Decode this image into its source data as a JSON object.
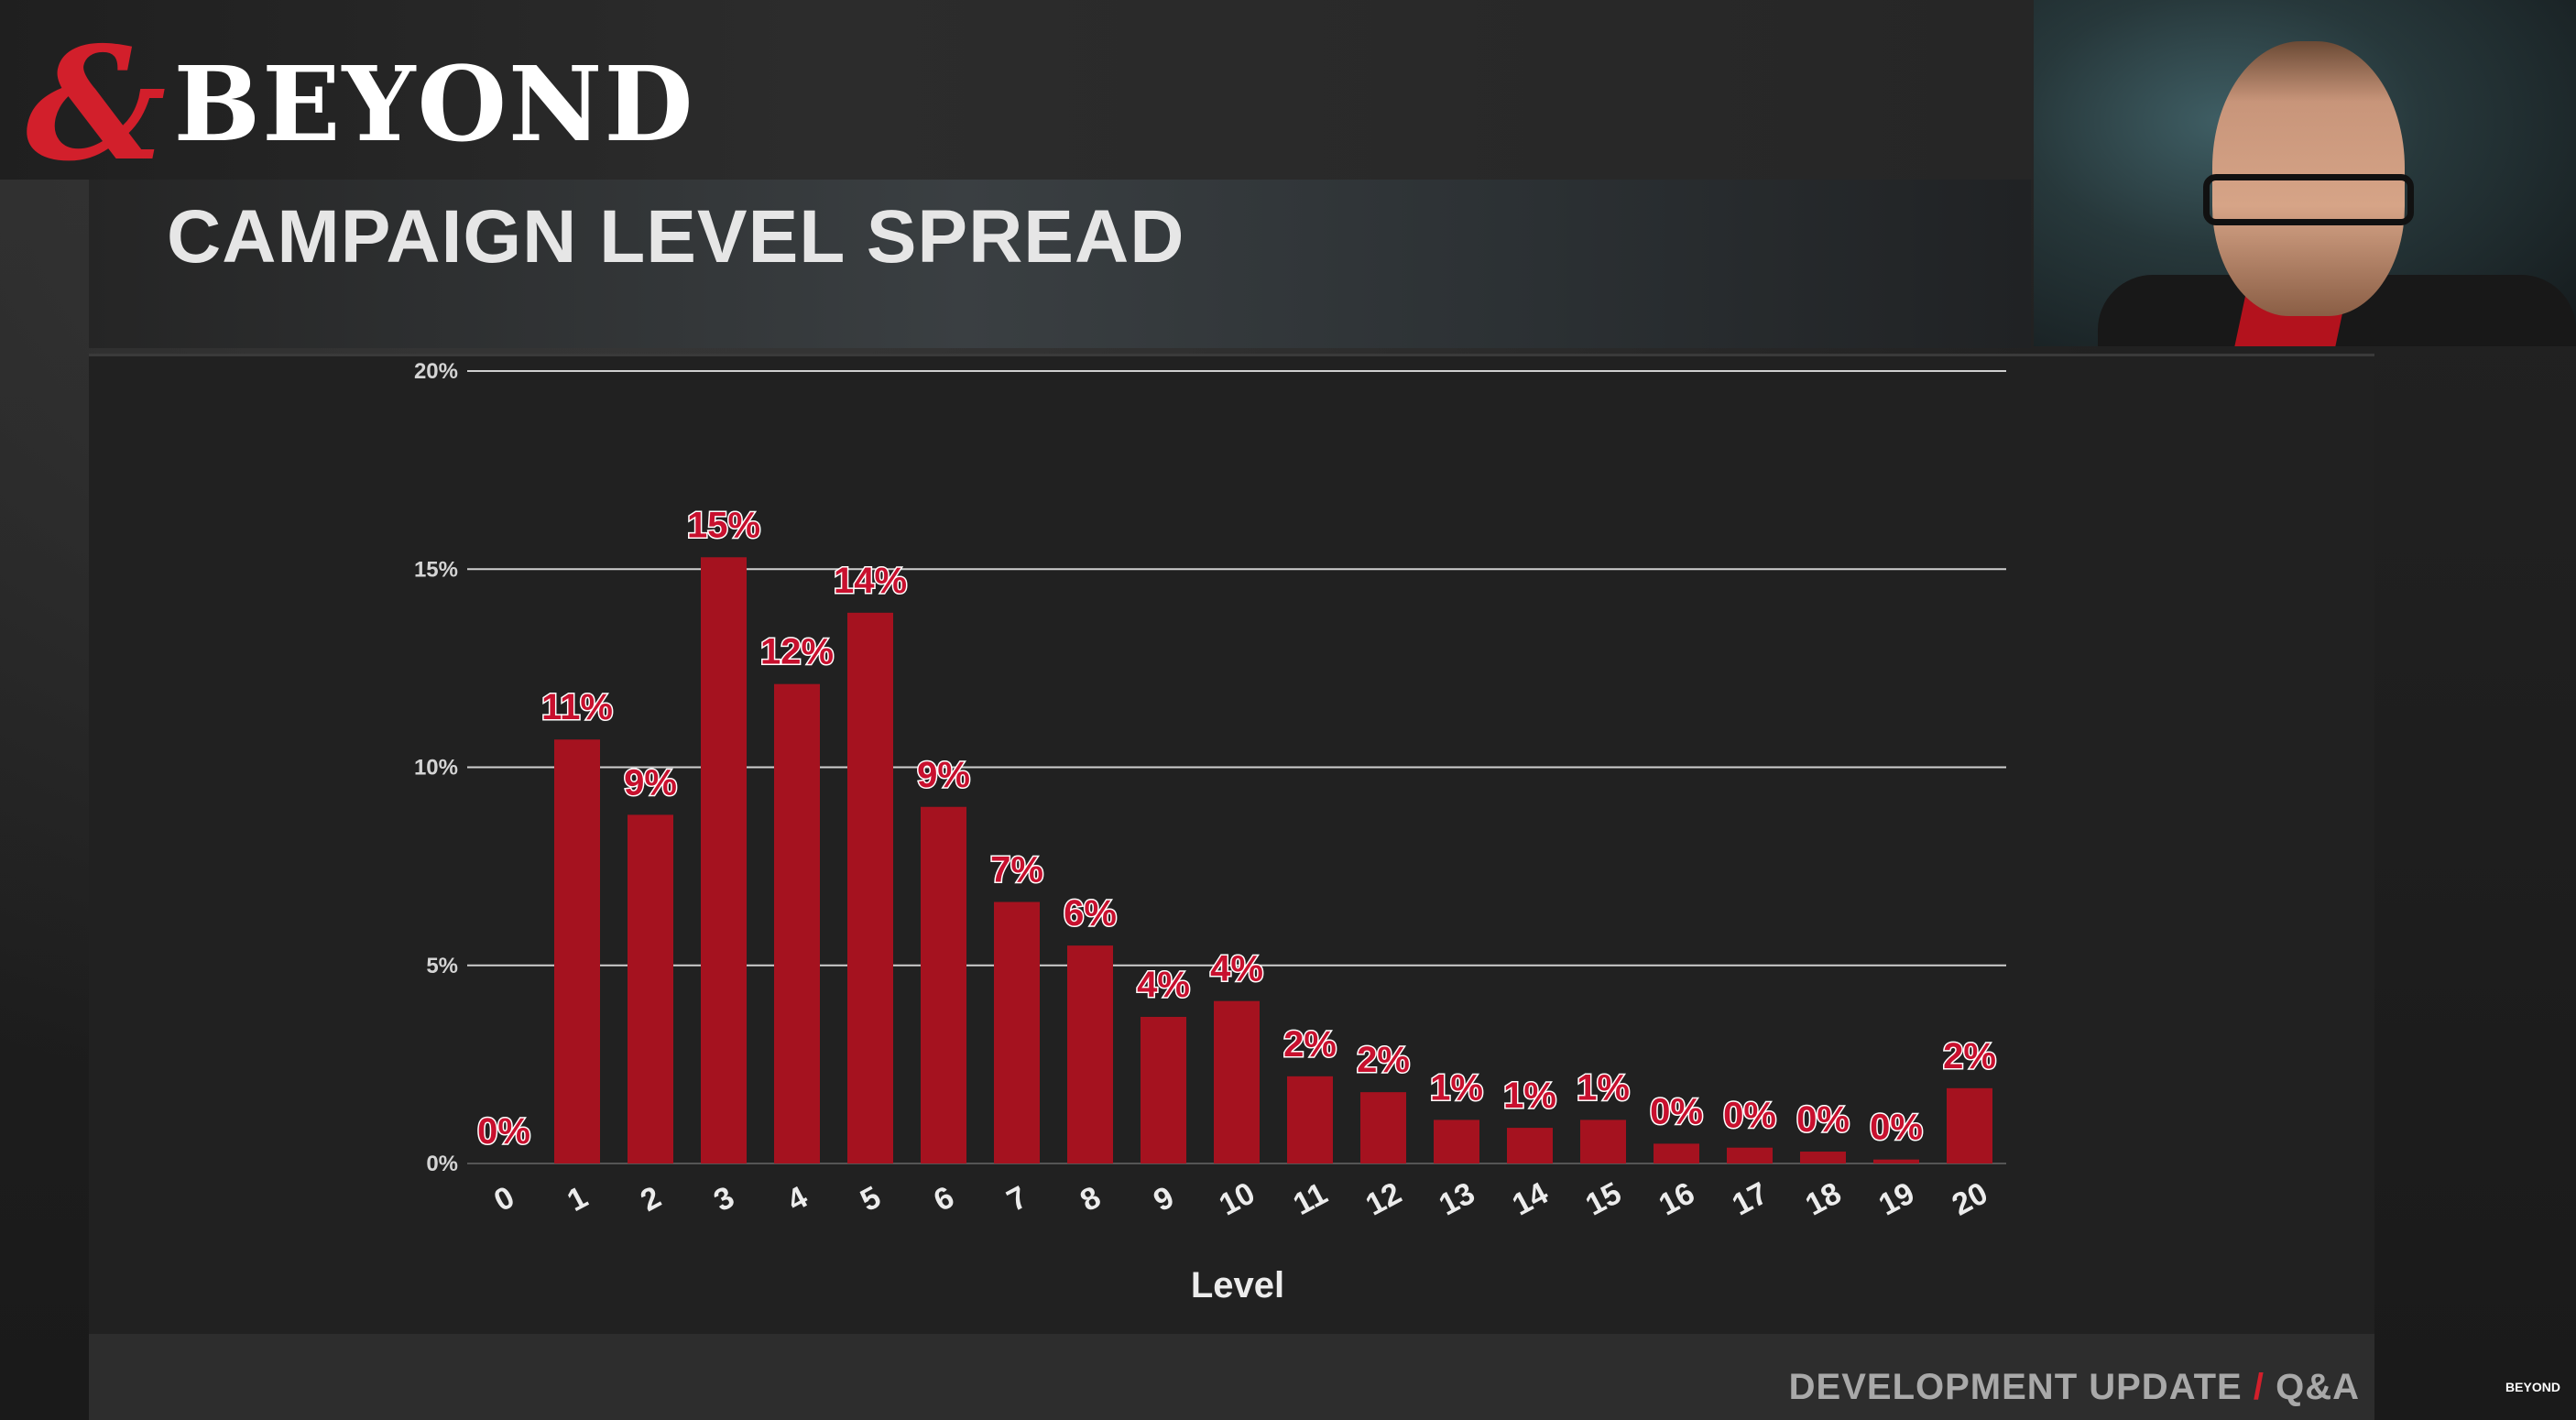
{
  "brand": {
    "logo_symbol": "&",
    "logo_word": "BEYOND",
    "small_logo": "BEYOND",
    "accent_color": "#c8102e"
  },
  "slide": {
    "title": "CAMPAIGN LEVEL SPREAD"
  },
  "footer": {
    "left": "DEVELOPMENT UPDATE",
    "separator": "/",
    "right": "Q&A"
  },
  "chart_data": {
    "type": "bar",
    "title": "CAMPAIGN LEVEL SPREAD",
    "xlabel": "Level",
    "ylabel": "",
    "ylim": [
      0,
      20
    ],
    "yticks": [
      0,
      5,
      10,
      15,
      20
    ],
    "ytick_labels": [
      "0%",
      "5%",
      "10%",
      "15%",
      "20%"
    ],
    "grid": true,
    "categories": [
      "0",
      "1",
      "2",
      "3",
      "4",
      "5",
      "6",
      "7",
      "8",
      "9",
      "10",
      "11",
      "12",
      "13",
      "14",
      "15",
      "16",
      "17",
      "18",
      "19",
      "20"
    ],
    "values": [
      0.0,
      10.7,
      8.8,
      15.3,
      12.1,
      13.9,
      9.0,
      6.6,
      5.5,
      3.7,
      4.1,
      2.2,
      1.8,
      1.1,
      0.9,
      1.1,
      0.5,
      0.4,
      0.3,
      0.1,
      1.9
    ],
    "data_labels": [
      "0%",
      "11%",
      "9%",
      "15%",
      "12%",
      "14%",
      "9%",
      "7%",
      "6%",
      "4%",
      "4%",
      "2%",
      "2%",
      "1%",
      "1%",
      "1%",
      "0%",
      "0%",
      "0%",
      "0%",
      "2%"
    ],
    "bar_color": "#a5121f",
    "gridline_color": "#cfcfcf"
  }
}
